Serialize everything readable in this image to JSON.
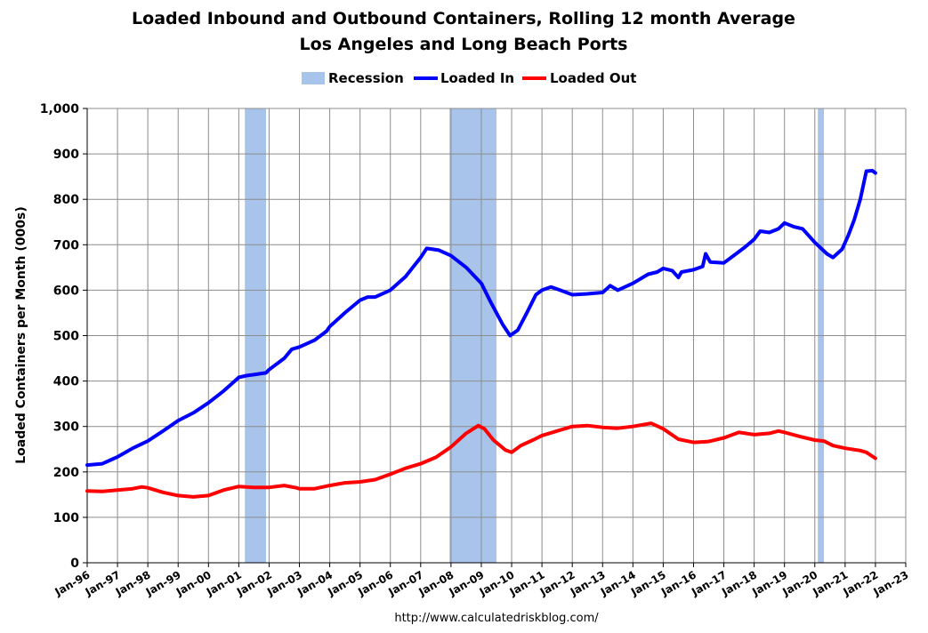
{
  "chart_data": {
    "type": "line",
    "title": "Loaded Inbound and Outbound Containers, Rolling 12 month Average",
    "subtitle": "Los Angeles and Long Beach Ports",
    "ylabel": "Loaded Containers per Month (000s)",
    "xlabel": "",
    "ylim": [
      0,
      1000
    ],
    "xlim": [
      "Jan-96",
      "Jan-23"
    ],
    "grid": true,
    "legend_position": "top-center",
    "y_ticks": [
      "0",
      "100",
      "200",
      "300",
      "400",
      "500",
      "600",
      "700",
      "800",
      "900",
      "1,000"
    ],
    "x_ticks": [
      "Jan-96",
      "Jan-97",
      "Jan-98",
      "Jan-99",
      "Jan-00",
      "Jan-01",
      "Jan-02",
      "Jan-03",
      "Jan-04",
      "Jan-05",
      "Jan-06",
      "Jan-07",
      "Jan-08",
      "Jan-09",
      "Jan-10",
      "Jan-11",
      "Jan-12",
      "Jan-13",
      "Jan-14",
      "Jan-15",
      "Jan-16",
      "Jan-17",
      "Jan-18",
      "Jan-19",
      "Jan-20",
      "Jan-21",
      "Jan-22",
      "Jan-23"
    ],
    "legend": [
      {
        "name": "Recession",
        "color": "#a9c4eb",
        "kind": "area"
      },
      {
        "name": "Loaded In",
        "color": "#0000ff",
        "kind": "line"
      },
      {
        "name": "Loaded Out",
        "color": "#ff0000",
        "kind": "line"
      }
    ],
    "recessions": [
      {
        "start": 2001.2,
        "end": 2001.9
      },
      {
        "start": 2007.95,
        "end": 2009.5
      },
      {
        "start": 2020.1,
        "end": 2020.3
      }
    ],
    "series": [
      {
        "name": "Loaded In",
        "color": "#0000ff",
        "points": [
          [
            1996.0,
            215
          ],
          [
            1996.5,
            218
          ],
          [
            1997.0,
            233
          ],
          [
            1997.5,
            252
          ],
          [
            1998.0,
            268
          ],
          [
            1998.5,
            290
          ],
          [
            1999.0,
            313
          ],
          [
            1999.5,
            330
          ],
          [
            2000.0,
            352
          ],
          [
            2000.5,
            378
          ],
          [
            2001.0,
            408
          ],
          [
            2001.25,
            412
          ],
          [
            2001.5,
            414
          ],
          [
            2001.9,
            418
          ],
          [
            2002.0,
            425
          ],
          [
            2002.5,
            450
          ],
          [
            2002.75,
            470
          ],
          [
            2003.0,
            475
          ],
          [
            2003.5,
            490
          ],
          [
            2003.9,
            510
          ],
          [
            2004.0,
            520
          ],
          [
            2004.5,
            550
          ],
          [
            2005.0,
            578
          ],
          [
            2005.25,
            585
          ],
          [
            2005.5,
            585
          ],
          [
            2006.0,
            600
          ],
          [
            2006.5,
            630
          ],
          [
            2007.0,
            672
          ],
          [
            2007.2,
            692
          ],
          [
            2007.6,
            688
          ],
          [
            2008.0,
            676
          ],
          [
            2008.5,
            650
          ],
          [
            2009.0,
            615
          ],
          [
            2009.3,
            575
          ],
          [
            2009.7,
            525
          ],
          [
            2009.95,
            500
          ],
          [
            2010.2,
            512
          ],
          [
            2010.5,
            550
          ],
          [
            2010.8,
            590
          ],
          [
            2011.0,
            600
          ],
          [
            2011.3,
            607
          ],
          [
            2011.6,
            600
          ],
          [
            2012.0,
            590
          ],
          [
            2012.5,
            592
          ],
          [
            2013.0,
            595
          ],
          [
            2013.25,
            610
          ],
          [
            2013.5,
            600
          ],
          [
            2014.0,
            615
          ],
          [
            2014.5,
            635
          ],
          [
            2014.8,
            640
          ],
          [
            2015.0,
            648
          ],
          [
            2015.3,
            643
          ],
          [
            2015.5,
            628
          ],
          [
            2015.6,
            640
          ],
          [
            2016.0,
            645
          ],
          [
            2016.3,
            652
          ],
          [
            2016.4,
            680
          ],
          [
            2016.55,
            662
          ],
          [
            2017.0,
            660
          ],
          [
            2017.3,
            675
          ],
          [
            2017.7,
            695
          ],
          [
            2018.0,
            712
          ],
          [
            2018.2,
            730
          ],
          [
            2018.5,
            727
          ],
          [
            2018.8,
            735
          ],
          [
            2019.0,
            748
          ],
          [
            2019.3,
            740
          ],
          [
            2019.6,
            735
          ],
          [
            2020.0,
            705
          ],
          [
            2020.4,
            680
          ],
          [
            2020.6,
            672
          ],
          [
            2020.9,
            690
          ],
          [
            2021.1,
            720
          ],
          [
            2021.3,
            755
          ],
          [
            2021.5,
            800
          ],
          [
            2021.7,
            862
          ],
          [
            2021.9,
            863
          ],
          [
            2022.0,
            858
          ]
        ]
      },
      {
        "name": "Loaded Out",
        "color": "#ff0000",
        "points": [
          [
            1996.0,
            158
          ],
          [
            1996.5,
            157
          ],
          [
            1997.0,
            160
          ],
          [
            1997.5,
            163
          ],
          [
            1997.8,
            167
          ],
          [
            1998.0,
            165
          ],
          [
            1998.5,
            155
          ],
          [
            1999.0,
            148
          ],
          [
            1999.5,
            145
          ],
          [
            2000.0,
            148
          ],
          [
            2000.5,
            160
          ],
          [
            2001.0,
            168
          ],
          [
            2001.5,
            166
          ],
          [
            2002.0,
            166
          ],
          [
            2002.5,
            170
          ],
          [
            2002.9,
            165
          ],
          [
            2003.0,
            163
          ],
          [
            2003.5,
            163
          ],
          [
            2004.0,
            170
          ],
          [
            2004.5,
            176
          ],
          [
            2005.0,
            178
          ],
          [
            2005.5,
            183
          ],
          [
            2006.0,
            195
          ],
          [
            2006.5,
            208
          ],
          [
            2007.0,
            218
          ],
          [
            2007.5,
            232
          ],
          [
            2008.0,
            255
          ],
          [
            2008.5,
            285
          ],
          [
            2008.9,
            302
          ],
          [
            2009.1,
            295
          ],
          [
            2009.4,
            270
          ],
          [
            2009.8,
            248
          ],
          [
            2010.0,
            243
          ],
          [
            2010.3,
            258
          ],
          [
            2010.7,
            270
          ],
          [
            2011.0,
            280
          ],
          [
            2011.5,
            290
          ],
          [
            2012.0,
            300
          ],
          [
            2012.5,
            302
          ],
          [
            2013.0,
            298
          ],
          [
            2013.5,
            296
          ],
          [
            2014.0,
            300
          ],
          [
            2014.6,
            307
          ],
          [
            2015.0,
            295
          ],
          [
            2015.5,
            272
          ],
          [
            2016.0,
            265
          ],
          [
            2016.5,
            267
          ],
          [
            2017.0,
            275
          ],
          [
            2017.5,
            287
          ],
          [
            2018.0,
            282
          ],
          [
            2018.5,
            285
          ],
          [
            2018.8,
            290
          ],
          [
            2019.0,
            287
          ],
          [
            2019.5,
            278
          ],
          [
            2020.0,
            270
          ],
          [
            2020.3,
            268
          ],
          [
            2020.6,
            258
          ],
          [
            2021.0,
            252
          ],
          [
            2021.5,
            247
          ],
          [
            2021.7,
            243
          ],
          [
            2022.0,
            230
          ]
        ]
      }
    ]
  },
  "source": "http://www.calculatedriskblog.com/"
}
